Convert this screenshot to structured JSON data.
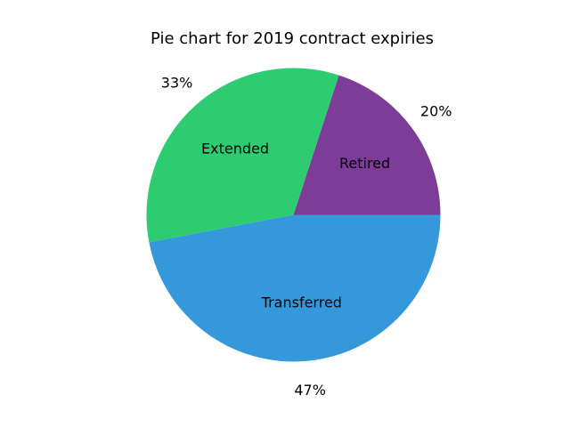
{
  "chart_data": {
    "type": "pie",
    "title": "Pie chart for 2019 contract expiries",
    "start_angle_deg": 0,
    "direction": "counterclockwise",
    "slices": [
      {
        "label": "Retired",
        "value": 20,
        "percent_label": "20%",
        "color": "#7d3c98"
      },
      {
        "label": "Extended",
        "value": 33,
        "percent_label": "33%",
        "color": "#2ecc71"
      },
      {
        "label": "Transferred",
        "value": 47,
        "percent_label": "47%",
        "color": "#3498db"
      }
    ]
  }
}
